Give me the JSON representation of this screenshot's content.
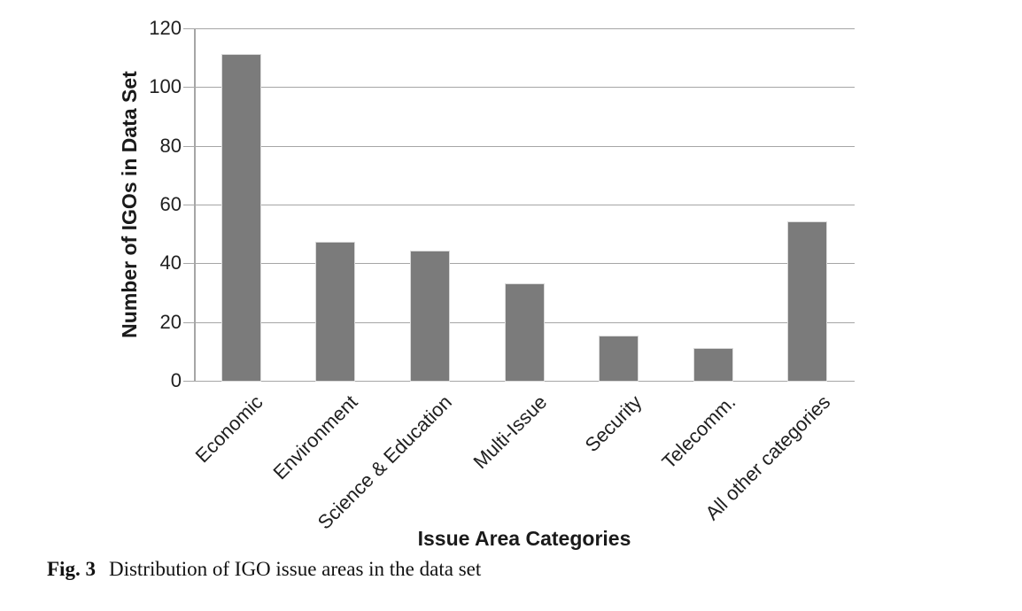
{
  "figure": {
    "caption_label": "Fig. 3",
    "caption_text": "Distribution of IGO issue areas in the data set"
  },
  "chart_data": {
    "type": "bar",
    "title": "",
    "categories": [
      "Economic",
      "Environment",
      "Science & Education",
      "Multi-Issue",
      "Security",
      "Telecomm.",
      "All other categories"
    ],
    "values": [
      111,
      47,
      44,
      33,
      15,
      11,
      54
    ],
    "xlabel": "Issue Area Categories",
    "ylabel": "Number of IGOs in Data Set",
    "ylim": [
      0,
      120
    ],
    "yticks": [
      0,
      20,
      40,
      60,
      80,
      100,
      120
    ],
    "grid": "horizontal",
    "legend": "none",
    "bar_color": "#7b7b7b",
    "bar_outline_color": "#d9d9d9",
    "axis_color": "#a6a6a6",
    "text_color": "#1f1f1f"
  }
}
